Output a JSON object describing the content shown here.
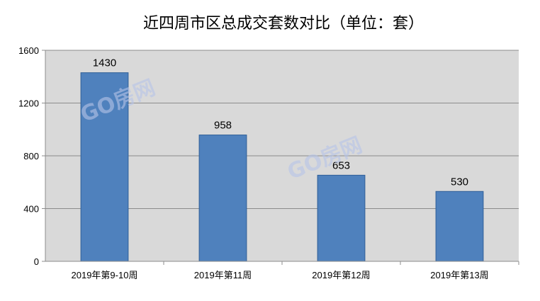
{
  "chart_data": {
    "type": "bar",
    "title": "近四周市区总成交套数对比（单位：套）",
    "categories": [
      "2019年第9-10周",
      "2019年第11周",
      "2019年第12周",
      "2019年第13周"
    ],
    "values": [
      1430,
      958,
      653,
      530
    ],
    "data_labels": [
      "1430",
      "958",
      "653",
      "530"
    ],
    "ylim": [
      0,
      1600
    ],
    "yticks": [
      0,
      400,
      800,
      1200,
      1600
    ],
    "ytick_labels": [
      "0",
      "400",
      "800",
      "1200",
      "1600"
    ],
    "grid": true,
    "legend": "none"
  },
  "colors": {
    "bar_fill": "#4f81bd",
    "bar_stroke": "#2f5f98",
    "plot_bg": "#d9d9d9",
    "grid": "#8c8c8c"
  },
  "watermark": {
    "text": "GO房网",
    "color": "#b7c5e8"
  }
}
